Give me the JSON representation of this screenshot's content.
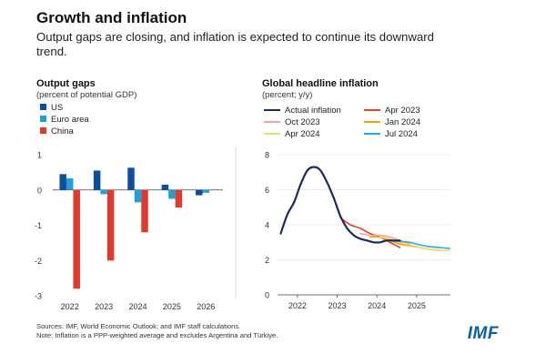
{
  "header": {
    "title": "Growth and inflation",
    "subtitle": "Output gaps are closing, and inflation is expected to continue its downward trend."
  },
  "footer": {
    "source": "Sources: IMF, World Economic Outlook; and IMF staff calculations.",
    "note": "Note: Inflation is a PPP-weighted average and excludes Argentina and Türkiye.",
    "logo": "IMF"
  },
  "colors": {
    "us": "#0b4f9c",
    "euro": "#1fa0d8",
    "china": "#e03a2f",
    "actual": "#1c2a5c",
    "apr2023": "#d9452e",
    "oct2023": "#f2a3a3",
    "jan2024": "#f0a500",
    "apr2024": "#f4d774",
    "jul2024": "#29a8e0",
    "axis": "#444444",
    "grid": "#dddddd"
  },
  "chart_data": [
    {
      "type": "bar",
      "title": "Output gaps",
      "subtitle": "(percent of potential GDP)",
      "categories": [
        "2022",
        "2023",
        "2024",
        "2025",
        "2026"
      ],
      "ylim": [
        -3,
        1
      ],
      "yticks": [
        1,
        0,
        -1,
        -2,
        -3
      ],
      "legend_position": "top-left",
      "series": [
        {
          "name": "US",
          "color_key": "us",
          "values": [
            0.45,
            0.55,
            0.63,
            0.15,
            -0.15
          ]
        },
        {
          "name": "Euro area",
          "color_key": "euro",
          "values": [
            0.33,
            -0.12,
            -0.35,
            -0.25,
            -0.08
          ]
        },
        {
          "name": "China",
          "color_key": "china",
          "values": [
            -2.8,
            -2.0,
            -1.2,
            -0.5,
            null
          ]
        }
      ]
    },
    {
      "type": "line",
      "title": "Global headline inflation",
      "subtitle": "(percent; y/y)",
      "xlim": [
        2021.5,
        2025.85
      ],
      "xticks": [
        2022,
        2023,
        2024,
        2025
      ],
      "ylim": [
        0,
        8
      ],
      "yticks": [
        0,
        2,
        4,
        6,
        8
      ],
      "legend_position": "top",
      "series": [
        {
          "name": "Actual inflation",
          "color_key": "actual",
          "width": 2.2,
          "points": [
            [
              2021.58,
              3.5
            ],
            [
              2021.75,
              4.6
            ],
            [
              2021.92,
              5.3
            ],
            [
              2022.08,
              6.3
            ],
            [
              2022.25,
              7.1
            ],
            [
              2022.42,
              7.3
            ],
            [
              2022.58,
              7.1
            ],
            [
              2022.75,
              6.4
            ],
            [
              2022.92,
              5.5
            ],
            [
              2023.08,
              4.5
            ],
            [
              2023.25,
              3.8
            ],
            [
              2023.42,
              3.4
            ],
            [
              2023.58,
              3.2
            ],
            [
              2023.75,
              3.1
            ],
            [
              2023.92,
              3.0
            ],
            [
              2024.08,
              3.0
            ],
            [
              2024.25,
              3.1
            ],
            [
              2024.42,
              3.1
            ],
            [
              2024.58,
              3.1
            ]
          ]
        },
        {
          "name": "Apr 2023",
          "color_key": "apr2023",
          "width": 1.6,
          "points": [
            [
              2023.08,
              4.4
            ],
            [
              2023.33,
              4.0
            ],
            [
              2023.58,
              3.8
            ],
            [
              2023.83,
              3.5
            ],
            [
              2024.08,
              3.3
            ],
            [
              2024.33,
              3.0
            ],
            [
              2024.58,
              2.7
            ]
          ]
        },
        {
          "name": "Oct 2023",
          "color_key": "oct2023",
          "width": 1.6,
          "points": [
            [
              2023.58,
              3.5
            ],
            [
              2023.83,
              3.4
            ],
            [
              2024.08,
              3.4
            ],
            [
              2024.33,
              3.3
            ],
            [
              2024.58,
              3.1
            ],
            [
              2024.83,
              2.9
            ]
          ]
        },
        {
          "name": "Jan 2024",
          "color_key": "jan2024",
          "width": 1.6,
          "points": [
            [
              2023.83,
              3.3
            ],
            [
              2024.08,
              3.3
            ],
            [
              2024.33,
              3.1
            ],
            [
              2024.58,
              2.9
            ],
            [
              2024.83,
              2.8
            ],
            [
              2025.08,
              2.7
            ],
            [
              2025.33,
              2.6
            ],
            [
              2025.58,
              2.55
            ]
          ]
        },
        {
          "name": "Apr 2024",
          "color_key": "apr2024",
          "width": 1.6,
          "points": [
            [
              2024.08,
              3.3
            ],
            [
              2024.33,
              3.2
            ],
            [
              2024.58,
              3.0
            ],
            [
              2024.83,
              2.85
            ],
            [
              2025.08,
              2.7
            ],
            [
              2025.33,
              2.6
            ],
            [
              2025.58,
              2.55
            ],
            [
              2025.83,
              2.55
            ]
          ]
        },
        {
          "name": "Jul 2024",
          "color_key": "jul2024",
          "width": 1.6,
          "points": [
            [
              2024.33,
              3.1
            ],
            [
              2024.58,
              3.05
            ],
            [
              2024.83,
              3.0
            ],
            [
              2025.08,
              2.85
            ],
            [
              2025.33,
              2.75
            ],
            [
              2025.58,
              2.7
            ],
            [
              2025.83,
              2.65
            ]
          ]
        }
      ]
    }
  ]
}
